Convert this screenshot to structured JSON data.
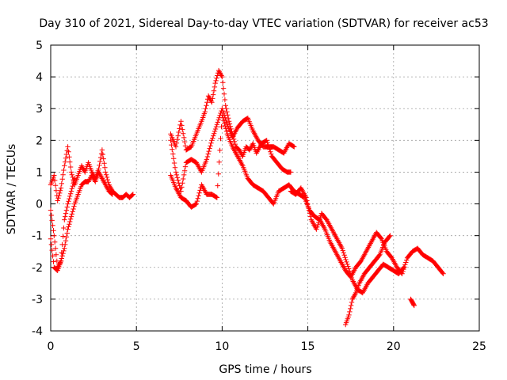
{
  "chart_data": {
    "type": "scatter",
    "title": "Day 310 of 2021, Sidereal Day-to-day VTEC variation (SDTVAR) for receiver ac53",
    "xlabel": "GPS time / hours",
    "ylabel": "SDTVAR / TECUs",
    "xlim": [
      0,
      25
    ],
    "ylim": [
      -4,
      5
    ],
    "xticks": [
      0,
      5,
      10,
      15,
      20,
      25
    ],
    "yticks": [
      -4,
      -3,
      -2,
      -1,
      0,
      1,
      2,
      3,
      4,
      5
    ],
    "grid": true,
    "marker": "+",
    "series_color": "#ff0000",
    "tracks": [
      {
        "name": "track-1",
        "x": [
          0.0,
          0.2,
          0.4,
          0.6,
          0.8,
          1.0,
          1.2,
          1.4,
          1.6,
          1.8,
          2.0,
          2.2,
          2.4,
          2.6,
          2.8,
          3.0,
          3.2,
          3.4,
          3.6,
          3.8,
          4.0,
          4.2,
          4.4,
          4.6,
          4.8
        ],
        "y": [
          0.6,
          0.9,
          0.1,
          0.5,
          1.2,
          1.8,
          1.0,
          0.6,
          0.9,
          1.2,
          1.0,
          1.3,
          1.0,
          0.8,
          1.1,
          1.7,
          1.0,
          0.6,
          0.4,
          0.3,
          0.2,
          0.2,
          0.3,
          0.2,
          0.3
        ]
      },
      {
        "name": "track-2",
        "x": [
          0.0,
          0.2,
          0.4,
          0.6,
          0.8,
          1.0,
          1.2,
          1.4,
          1.6,
          1.8,
          2.0,
          2.2,
          2.4,
          2.6,
          2.8,
          3.0,
          3.2,
          3.4,
          3.6
        ],
        "y": [
          -0.2,
          -1.0,
          -2.0,
          -1.8,
          -1.4,
          -0.8,
          -0.4,
          0.0,
          0.3,
          0.6,
          0.7,
          0.7,
          0.9,
          0.7,
          1.0,
          0.8,
          0.6,
          0.4,
          0.3
        ]
      },
      {
        "name": "track-3",
        "x": [
          0.0,
          0.2,
          0.4,
          0.6,
          0.8,
          1.0,
          1.2,
          1.4
        ],
        "y": [
          -1.1,
          -2.0,
          -2.1,
          -1.8,
          -0.5,
          0.0,
          0.4,
          0.8
        ]
      },
      {
        "name": "track-4",
        "x": [
          7.0,
          7.3,
          7.6,
          7.9,
          8.2,
          8.5,
          8.8,
          9.0,
          9.2,
          9.4,
          9.6,
          9.8,
          10.0,
          10.2,
          10.4,
          10.6,
          10.8,
          11.0,
          11.2,
          11.4,
          11.6,
          11.8,
          12.0,
          12.3,
          12.6,
          12.9,
          13.2,
          13.5,
          13.8,
          14.0
        ],
        "y": [
          2.2,
          1.8,
          2.6,
          1.7,
          1.8,
          2.2,
          2.6,
          2.9,
          3.4,
          3.2,
          3.8,
          4.2,
          4.0,
          3.1,
          2.6,
          2.2,
          1.8,
          1.7,
          1.5,
          1.8,
          1.7,
          1.9,
          1.6,
          1.9,
          2.0,
          1.5,
          1.3,
          1.1,
          1.0,
          1.0
        ]
      },
      {
        "name": "track-5",
        "x": [
          7.0,
          7.3,
          7.6,
          7.9,
          8.2,
          8.5,
          8.8,
          9.1,
          9.4,
          9.7,
          10.0,
          10.3,
          10.6,
          10.9,
          11.2,
          11.5,
          11.8,
          12.1,
          12.4,
          12.7,
          13.0,
          13.3,
          13.6,
          13.9,
          14.2
        ],
        "y": [
          2.0,
          1.0,
          0.4,
          1.3,
          1.4,
          1.3,
          1.0,
          1.4,
          2.0,
          2.5,
          3.0,
          2.5,
          2.1,
          2.4,
          2.6,
          2.7,
          2.3,
          2.0,
          1.8,
          1.8,
          1.8,
          1.7,
          1.6,
          1.9,
          1.8
        ]
      },
      {
        "name": "track-6",
        "x": [
          7.0,
          7.3,
          7.6,
          7.9,
          8.2,
          8.5,
          8.8,
          9.1,
          9.4,
          9.7,
          10.0,
          10.3,
          10.6,
          10.9,
          11.2,
          11.5,
          11.8,
          12.1,
          12.4,
          12.7,
          13.0,
          13.3,
          13.6,
          13.9,
          14.2,
          14.5,
          14.8,
          15.1,
          15.4,
          15.7,
          16.0,
          16.3,
          16.6,
          16.9,
          17.2,
          17.5,
          17.8,
          18.1,
          18.4,
          18.7,
          19.0,
          19.3,
          19.6,
          19.9,
          20.2,
          20.5,
          20.8,
          21.1,
          21.4,
          21.7,
          22.0,
          22.3,
          22.6,
          22.9
        ],
        "y": [
          0.9,
          0.5,
          0.2,
          0.1,
          -0.1,
          0.0,
          0.6,
          0.3,
          0.3,
          0.2,
          2.8,
          2.2,
          1.8,
          1.5,
          1.2,
          0.8,
          0.6,
          0.5,
          0.4,
          0.2,
          0.0,
          0.4,
          0.5,
          0.6,
          0.4,
          0.3,
          0.2,
          -0.2,
          -0.4,
          -0.5,
          -0.8,
          -1.2,
          -1.5,
          -1.8,
          -2.1,
          -2.3,
          -2.0,
          -1.8,
          -1.5,
          -1.2,
          -0.9,
          -1.1,
          -1.5,
          -1.7,
          -2.0,
          -2.2,
          -1.7,
          -1.5,
          -1.4,
          -1.6,
          -1.7,
          -1.8,
          -2.0,
          -2.2
        ]
      },
      {
        "name": "track-7",
        "x": [
          14.0,
          14.3,
          14.6,
          14.9,
          15.2,
          15.5,
          15.8,
          16.1,
          16.4,
          16.7,
          17.0,
          17.3,
          17.6,
          17.9,
          18.2,
          18.5,
          18.8,
          19.1,
          19.4,
          19.7,
          20.0,
          20.3,
          20.6
        ],
        "y": [
          0.4,
          0.3,
          0.5,
          0.2,
          -0.5,
          -0.8,
          -0.3,
          -0.5,
          -0.8,
          -1.1,
          -1.4,
          -1.9,
          -2.4,
          -2.7,
          -2.8,
          -2.5,
          -2.3,
          -2.1,
          -1.9,
          -2.0,
          -2.1,
          -2.2,
          -2.0
        ]
      },
      {
        "name": "track-8",
        "x": [
          17.2,
          17.4,
          17.6,
          17.8,
          18.0,
          18.3,
          18.6,
          18.9,
          19.2,
          19.5,
          19.8
        ],
        "y": [
          -3.8,
          -3.5,
          -3.0,
          -2.8,
          -2.5,
          -2.2,
          -2.0,
          -1.8,
          -1.6,
          -1.2,
          -1.0
        ]
      },
      {
        "name": "track-9",
        "x": [
          21.0,
          21.1,
          21.2
        ],
        "y": [
          -3.0,
          -3.1,
          -3.2
        ]
      }
    ]
  }
}
